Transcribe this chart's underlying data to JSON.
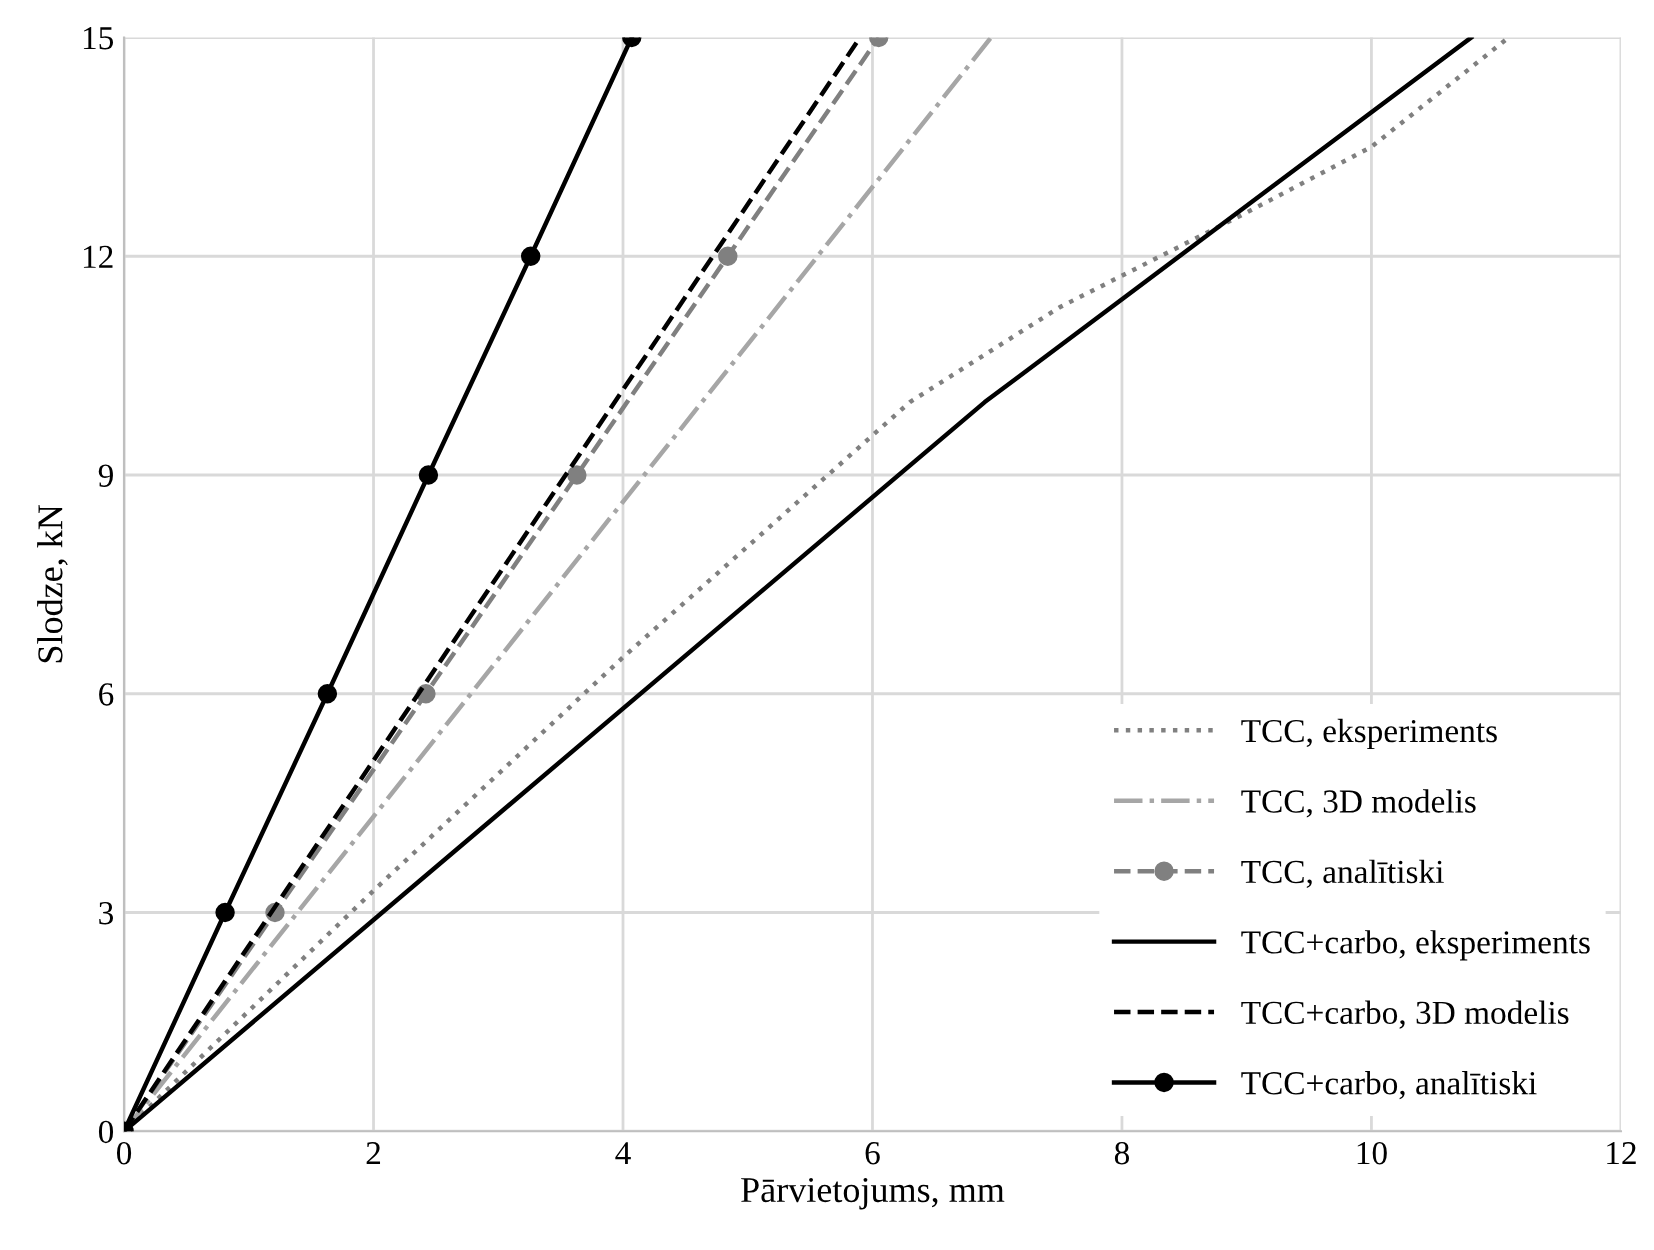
{
  "chart_data": {
    "type": "line",
    "xlabel": "Pārvietojums, mm",
    "ylabel": "Slodze, kN",
    "xlim": [
      0,
      12
    ],
    "ylim": [
      0,
      15
    ],
    "xticks": [
      0,
      2,
      4,
      6,
      8,
      10,
      12
    ],
    "yticks": [
      0,
      3,
      6,
      9,
      12,
      15
    ],
    "grid": true,
    "legend": "right",
    "series": [
      {
        "name": "TCC, eksperiments",
        "color": "#808080",
        "line_style": "dotted",
        "marker": "none",
        "x": [
          0,
          2,
          4,
          6.3,
          7.5,
          9,
          10,
          11.1
        ],
        "values": [
          0,
          3.3,
          6.5,
          10,
          11.3,
          12.6,
          13.5,
          15
        ]
      },
      {
        "name": "TCC, 3D modelis",
        "color": "#a6a6a6",
        "line_style": "dashdot",
        "marker": "none",
        "x": [
          0,
          6.95
        ],
        "values": [
          0,
          15
        ]
      },
      {
        "name": "TCC, analītiski",
        "color": "#808080",
        "line_style": "dashed",
        "marker": "circle",
        "x": [
          0,
          1.21,
          2.42,
          3.63,
          4.84,
          6.05
        ],
        "values": [
          0,
          3,
          6,
          9,
          12,
          15
        ]
      },
      {
        "name": "TCC+carbo, eksperiments",
        "color": "#000000",
        "line_style": "solid",
        "marker": "none",
        "x": [
          0,
          6.9,
          10.8
        ],
        "values": [
          0,
          10,
          15
        ]
      },
      {
        "name": "TCC+carbo, 3D modelis",
        "color": "#000000",
        "line_style": "dashed",
        "marker": "none",
        "x": [
          0,
          5.9
        ],
        "values": [
          0,
          15
        ]
      },
      {
        "name": "TCC+carbo, analītiski",
        "color": "#000000",
        "line_style": "solid",
        "marker": "circle",
        "x": [
          0,
          0.81,
          1.63,
          2.44,
          3.26,
          4.07
        ],
        "values": [
          0,
          3,
          6,
          9,
          12,
          15
        ]
      }
    ]
  }
}
